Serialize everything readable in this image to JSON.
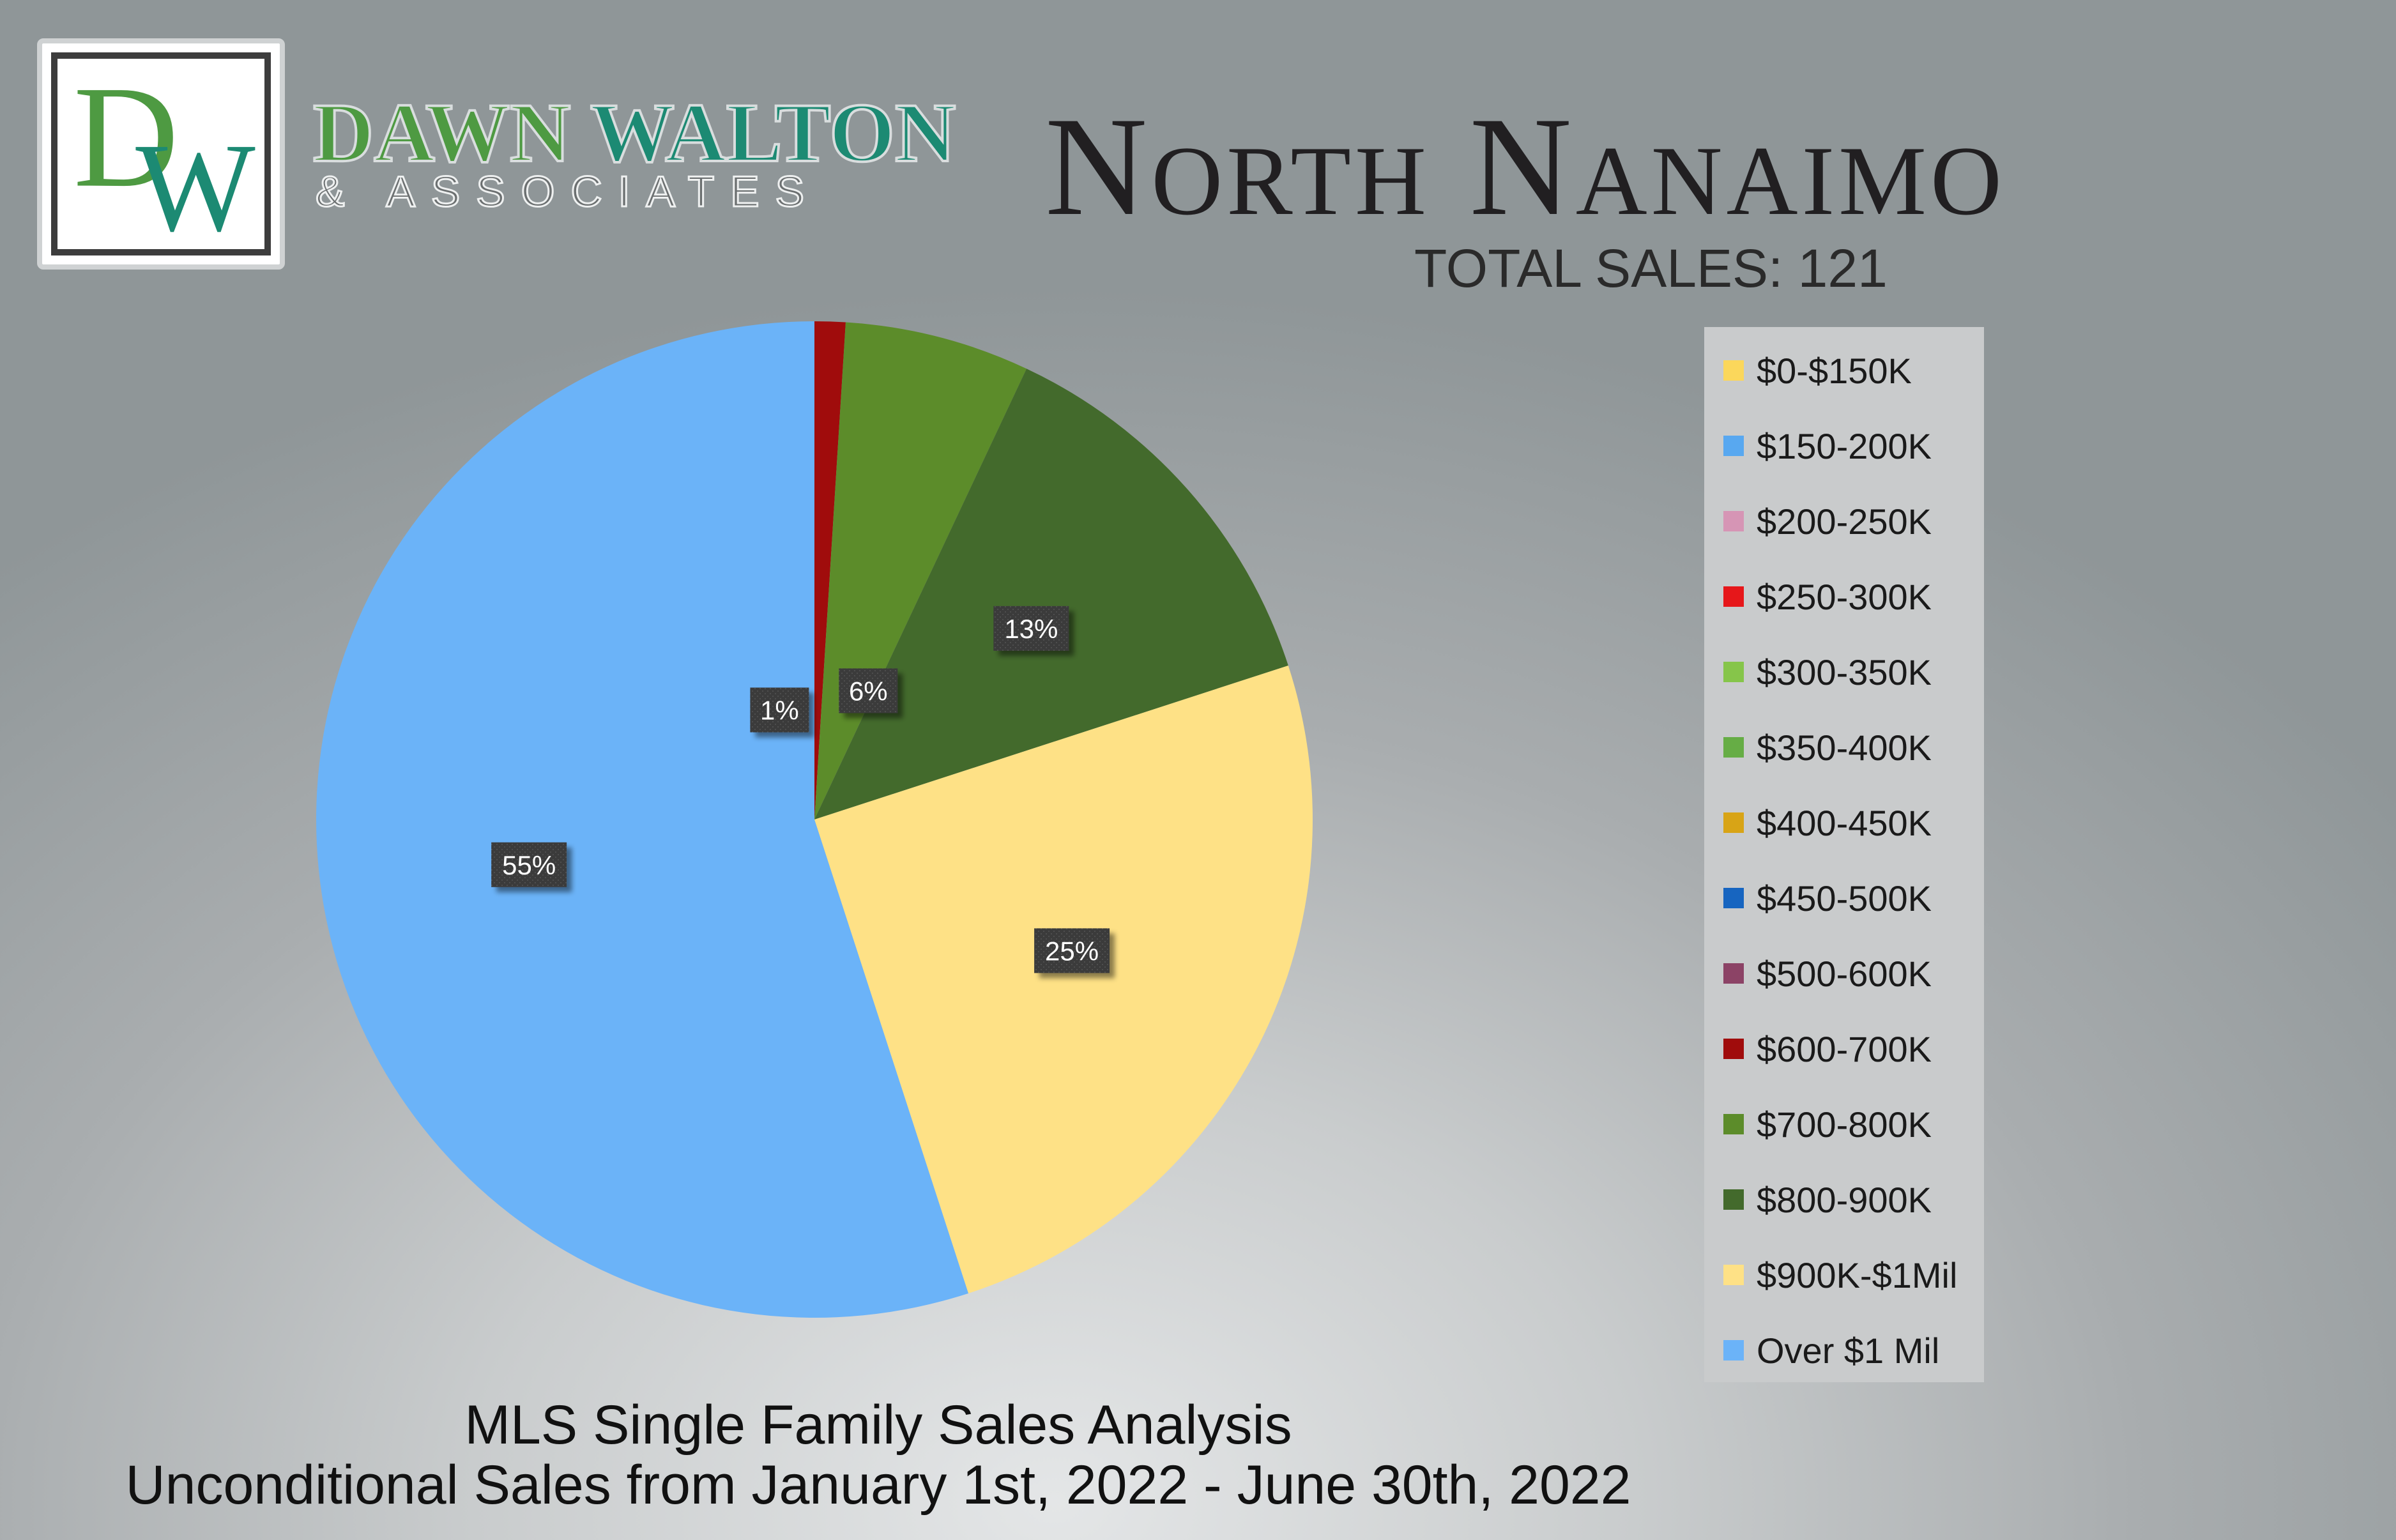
{
  "logo": {
    "monogram": "DW",
    "brand_first": "DAWN",
    "brand_second": "WALTON",
    "brand_sub": "& ASSOCIATES",
    "colors": {
      "green": "#4e9a42",
      "teal": "#1c8a73",
      "frame": "#3d3d3d"
    }
  },
  "header": {
    "title": "North Nanaimo",
    "total_sales": "TOTAL SALES: 121"
  },
  "footer": {
    "line1": "MLS Single Family Sales Analysis",
    "line2": "Unconditional Sales from January 1st, 2022 - June 30th, 2022"
  },
  "chart_data": {
    "type": "pie",
    "title": "",
    "total": 121,
    "legend_position": "right",
    "slices": [
      {
        "label": "$0-$150K",
        "value": 0,
        "color": "#fbd75b"
      },
      {
        "label": "$150-200K",
        "value": 0,
        "color": "#58a8f0"
      },
      {
        "label": "$200-250K",
        "value": 0,
        "color": "#d695b5"
      },
      {
        "label": "$250-300K",
        "value": 0,
        "color": "#e6171a"
      },
      {
        "label": "$300-350K",
        "value": 0,
        "color": "#86c54a"
      },
      {
        "label": "$350-400K",
        "value": 0,
        "color": "#66ad45"
      },
      {
        "label": "$400-450K",
        "value": 0,
        "color": "#d8a416"
      },
      {
        "label": "$450-500K",
        "value": 0,
        "color": "#1765c0"
      },
      {
        "label": "$500-600K",
        "value": 0,
        "color": "#8c4366"
      },
      {
        "label": "$600-700K",
        "value": 1,
        "color": "#a00c0c",
        "data_label": "1%"
      },
      {
        "label": "$700-800K",
        "value": 6,
        "color": "#5c8c2a",
        "data_label": "6%"
      },
      {
        "label": "$800-900K",
        "value": 13,
        "color": "#436a2c",
        "data_label": "13%"
      },
      {
        "label": "$900K-$1Mil",
        "value": 25,
        "color": "#fee186",
        "data_label": "25%"
      },
      {
        "label": "Over $1 Mil",
        "value": 55,
        "color": "#6bb3f8",
        "data_label": "55%"
      }
    ]
  }
}
